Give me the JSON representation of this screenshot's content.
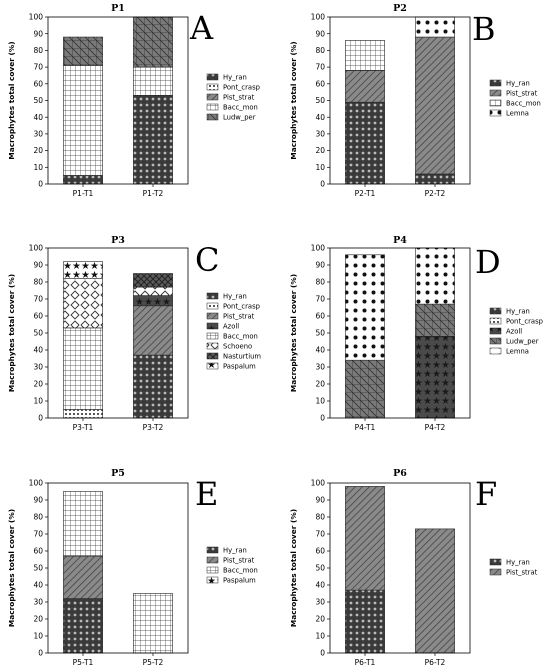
{
  "figure": {
    "series_styles": {
      "Hy_ran": {
        "fill": "#3a3a3a",
        "pattern": "dots-dark"
      },
      "Pont_crasp": {
        "fill": "#ffffff",
        "pattern": "dense-dots"
      },
      "Pist_strat": {
        "fill": "#7a7a7a",
        "pattern": "diagonal"
      },
      "Bacc_mon": {
        "fill": "#ffffff",
        "pattern": "grid"
      },
      "Ludw_per": {
        "fill": "#6a6a6a",
        "pattern": "grid-dark"
      },
      "Lemna": {
        "fill": "#ffffff",
        "pattern": "big-dots"
      },
      "Azoll": {
        "fill": "#3a3a3a",
        "pattern": "stars-dark"
      },
      "Schoeno": {
        "fill": "#ffffff",
        "pattern": "diamonds"
      },
      "Nasturtium": {
        "fill": "#5a5a5a",
        "pattern": "cross-dark"
      },
      "Paspalum": {
        "fill": "#ffffff",
        "pattern": "stars-light"
      }
    }
  },
  "chart_data": [
    {
      "type": "bar",
      "stacked": true,
      "title": "P1",
      "panel_letter": "A",
      "ylabel": "Macrophytes total cover (%)",
      "ylim": [
        0,
        100
      ],
      "yticks": [
        0,
        10,
        20,
        30,
        40,
        50,
        60,
        70,
        80,
        90,
        100
      ],
      "categories": [
        "P1-T1",
        "P1-T2"
      ],
      "legend_position": "right",
      "series": [
        {
          "name": "Hy_ran",
          "values": [
            5,
            53
          ]
        },
        {
          "name": "Pont_crasp",
          "values": [
            0,
            0
          ]
        },
        {
          "name": "Pist_strat",
          "values": [
            0,
            0
          ]
        },
        {
          "name": "Bacc_mon",
          "values": [
            66,
            17
          ]
        },
        {
          "name": "Ludw_per",
          "values": [
            17,
            30
          ]
        }
      ]
    },
    {
      "type": "bar",
      "stacked": true,
      "title": "P2",
      "panel_letter": "B",
      "ylabel": "Macrophytes total cover (%)",
      "ylim": [
        0,
        100
      ],
      "yticks": [
        0,
        10,
        20,
        30,
        40,
        50,
        60,
        70,
        80,
        90,
        100
      ],
      "categories": [
        "P2-T1",
        "P2-T2"
      ],
      "legend_position": "right",
      "series": [
        {
          "name": "Hy_ran",
          "values": [
            49,
            6
          ]
        },
        {
          "name": "Pist_strat",
          "values": [
            19,
            82
          ]
        },
        {
          "name": "Bacc_mon",
          "values": [
            18,
            0
          ]
        },
        {
          "name": "Lemna",
          "values": [
            0,
            12
          ]
        }
      ]
    },
    {
      "type": "bar",
      "stacked": true,
      "title": "P3",
      "panel_letter": "C",
      "ylabel": "Macrophytes total cover (%)",
      "ylim": [
        0,
        100
      ],
      "yticks": [
        0,
        10,
        20,
        30,
        40,
        50,
        60,
        70,
        80,
        90,
        100
      ],
      "categories": [
        "P3-T1",
        "P3-T2"
      ],
      "legend_position": "right",
      "series": [
        {
          "name": "Hy_ran",
          "values": [
            0,
            37
          ]
        },
        {
          "name": "Pont_crasp",
          "values": [
            5,
            0
          ]
        },
        {
          "name": "Pist_strat",
          "values": [
            0,
            29
          ]
        },
        {
          "name": "Azoll",
          "values": [
            0,
            6
          ]
        },
        {
          "name": "Bacc_mon",
          "values": [
            48,
            0
          ]
        },
        {
          "name": "Schoeno",
          "values": [
            29,
            5
          ]
        },
        {
          "name": "Nasturtium",
          "values": [
            0,
            8
          ]
        },
        {
          "name": "Paspalum",
          "values": [
            10,
            0
          ]
        }
      ]
    },
    {
      "type": "bar",
      "stacked": true,
      "title": "P4",
      "panel_letter": "D",
      "ylabel": "Macrophytes total cover (%)",
      "ylim": [
        0,
        100
      ],
      "yticks": [
        0,
        10,
        20,
        30,
        40,
        50,
        60,
        70,
        80,
        90,
        100
      ],
      "categories": [
        "P4-T1",
        "P4-T2"
      ],
      "legend_position": "right",
      "series": [
        {
          "name": "Hy_ran",
          "values": [
            0,
            0
          ]
        },
        {
          "name": "Pont_crasp",
          "values": [
            0,
            0
          ]
        },
        {
          "name": "Azoll",
          "values": [
            0,
            48
          ]
        },
        {
          "name": "Ludw_per",
          "values": [
            34,
            19
          ]
        },
        {
          "name": "Lemna",
          "values": [
            62,
            33
          ]
        }
      ]
    },
    {
      "type": "bar",
      "stacked": true,
      "title": "P5",
      "panel_letter": "E",
      "ylabel": "Macrophytes total cover (%)",
      "ylim": [
        0,
        100
      ],
      "yticks": [
        0,
        10,
        20,
        30,
        40,
        50,
        60,
        70,
        80,
        90,
        100
      ],
      "categories": [
        "P5-T1",
        "P5-T2"
      ],
      "legend_position": "right",
      "series": [
        {
          "name": "Hy_ran",
          "values": [
            32,
            0
          ]
        },
        {
          "name": "Pist_strat",
          "values": [
            25,
            0
          ]
        },
        {
          "name": "Bacc_mon",
          "values": [
            38,
            35
          ]
        },
        {
          "name": "Paspalum",
          "values": [
            0,
            0
          ]
        }
      ]
    },
    {
      "type": "bar",
      "stacked": true,
      "title": "P6",
      "panel_letter": "F",
      "ylabel": "Macrophytes total cover (%)",
      "ylim": [
        0,
        100
      ],
      "yticks": [
        0,
        10,
        20,
        30,
        40,
        50,
        60,
        70,
        80,
        90,
        100
      ],
      "categories": [
        "P6-T1",
        "P6-T2"
      ],
      "legend_position": "right",
      "series": [
        {
          "name": "Hy_ran",
          "values": [
            37,
            0
          ]
        },
        {
          "name": "Pist_strat",
          "values": [
            61,
            73
          ]
        }
      ]
    }
  ]
}
